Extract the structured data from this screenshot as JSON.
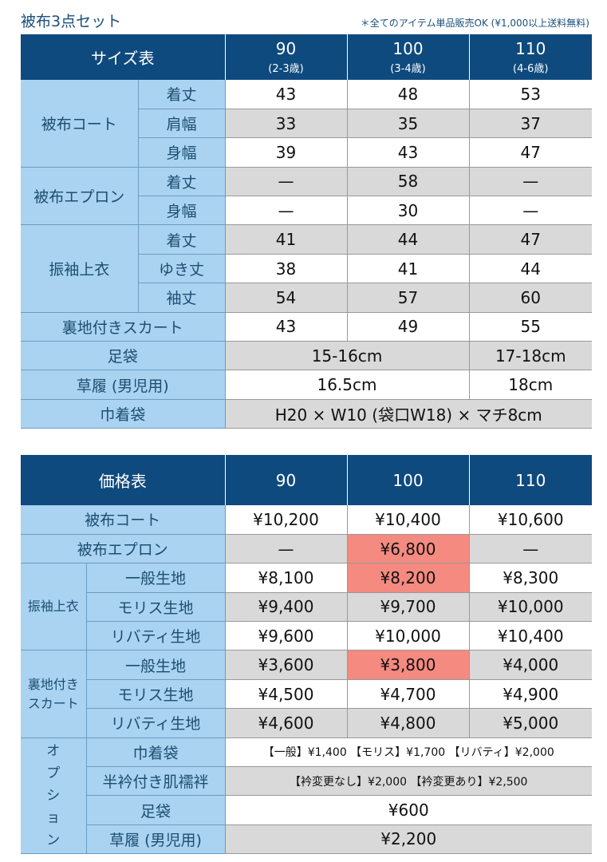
{
  "title": "被布3点セット",
  "note": "＊全てのアイテム単品販売OK (¥1,000以上送料無料)",
  "colors": {
    "header": "#0e4a7e",
    "label": "#a9d3f1",
    "gray": "#d9d9d9",
    "highlight": "#f48a80"
  },
  "size": {
    "header": "サイズ表",
    "cols": [
      {
        "size": "90",
        "age": "(2-3歳)"
      },
      {
        "size": "100",
        "age": "(3-4歳)"
      },
      {
        "size": "110",
        "age": "(4-6歳)"
      }
    ],
    "coat": {
      "label": "被布コート",
      "rows": [
        {
          "m": "着丈",
          "v": [
            "43",
            "48",
            "53"
          ]
        },
        {
          "m": "肩幅",
          "v": [
            "33",
            "35",
            "37"
          ]
        },
        {
          "m": "身幅",
          "v": [
            "39",
            "43",
            "47"
          ]
        }
      ]
    },
    "apron": {
      "label": "被布エプロン",
      "rows": [
        {
          "m": "着丈",
          "v": [
            "—",
            "58",
            "—"
          ]
        },
        {
          "m": "身幅",
          "v": [
            "—",
            "30",
            "—"
          ]
        }
      ]
    },
    "top": {
      "label": "振袖上衣",
      "rows": [
        {
          "m": "着丈",
          "v": [
            "41",
            "44",
            "47"
          ]
        },
        {
          "m": "ゆき丈",
          "v": [
            "38",
            "41",
            "44"
          ]
        },
        {
          "m": "袖丈",
          "v": [
            "54",
            "57",
            "60"
          ]
        }
      ]
    },
    "skirt": {
      "label": "裏地付きスカート",
      "v": [
        "43",
        "49",
        "55"
      ]
    },
    "tabi": {
      "label": "足袋",
      "a": "15-16cm",
      "b": "17-18cm"
    },
    "zori": {
      "label": "草履 (男児用)",
      "a": "16.5cm",
      "b": "18cm"
    },
    "bag": {
      "label": "巾着袋",
      "v": "H20 × W10 (袋口W18) × マチ8cm"
    }
  },
  "price": {
    "header": "価格表",
    "cols": [
      "90",
      "100",
      "110"
    ],
    "coat": {
      "label": "被布コート",
      "v": [
        "¥10,200",
        "¥10,400",
        "¥10,600"
      ]
    },
    "apron": {
      "label": "被布エプロン",
      "v": [
        "—",
        "¥6,800",
        "—"
      ]
    },
    "top": {
      "label": "振袖上衣",
      "rows": [
        {
          "m": "一般生地",
          "v": [
            "¥8,100",
            "¥8,200",
            "¥8,300"
          ]
        },
        {
          "m": "モリス生地",
          "v": [
            "¥9,400",
            "¥9,700",
            "¥10,000"
          ]
        },
        {
          "m": "リバティ生地",
          "v": [
            "¥9,600",
            "¥10,000",
            "¥10,400"
          ]
        }
      ]
    },
    "skirt": {
      "label1": "裏地付き",
      "label2": "スカート",
      "rows": [
        {
          "m": "一般生地",
          "v": [
            "¥3,600",
            "¥3,800",
            "¥4,000"
          ]
        },
        {
          "m": "モリス生地",
          "v": [
            "¥4,500",
            "¥4,700",
            "¥4,900"
          ]
        },
        {
          "m": "リバティ生地",
          "v": [
            "¥4,600",
            "¥4,800",
            "¥5,000"
          ]
        }
      ]
    },
    "option": {
      "label": [
        "オ",
        "プ",
        "シ",
        "ョ",
        "ン"
      ],
      "rows": [
        {
          "m": "巾着袋",
          "v": "【一般】¥1,400 【モリス】¥1,700 【リバティ】¥2,000"
        },
        {
          "m": "半衿付き肌襦袢",
          "v": "【衿変更なし】¥2,000 【衿変更あり】¥2,500"
        },
        {
          "m": "足袋",
          "v": "¥600"
        },
        {
          "m": "草履 (男児用)",
          "v": "¥2,200"
        }
      ]
    }
  }
}
